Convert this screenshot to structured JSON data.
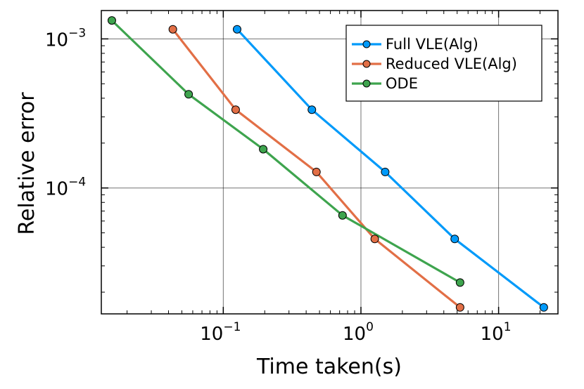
{
  "chart_data": {
    "type": "line",
    "x_scale": "log",
    "y_scale": "log",
    "xlabel": "Time taken(s)",
    "ylabel": "Relative error",
    "xlim": [
      0.013,
      27
    ],
    "ylim": [
      1.43e-05,
      0.00155
    ],
    "grid": true,
    "legend_position": "top-right",
    "x_ticks": [
      {
        "value": 0.1,
        "base": "10",
        "exp": "−1"
      },
      {
        "value": 1,
        "base": "10",
        "exp": "0"
      },
      {
        "value": 10,
        "base": "10",
        "exp": "1"
      }
    ],
    "y_ticks": [
      {
        "value": 0.001,
        "base": "10",
        "exp": "−3"
      },
      {
        "value": 0.0001,
        "base": "10",
        "exp": "−4"
      }
    ],
    "series": [
      {
        "name": "Full VLE(Alg)",
        "color": "#009AFA",
        "x": [
          0.126,
          0.44,
          1.5,
          4.8,
          21.3
        ],
        "y": [
          0.00116,
          0.000335,
          0.000128,
          4.55e-05,
          1.58e-05
        ]
      },
      {
        "name": "Reduced VLE(Alg)",
        "color": "#E26F46",
        "x": [
          0.043,
          0.123,
          0.475,
          1.26,
          5.25
        ],
        "y": [
          0.00116,
          0.000335,
          0.000128,
          4.55e-05,
          1.58e-05
        ]
      },
      {
        "name": "ODE",
        "color": "#3EA44E",
        "x": [
          0.0155,
          0.056,
          0.195,
          0.735,
          5.25
        ],
        "y": [
          0.00133,
          0.000425,
          0.000182,
          6.55e-05,
          2.32e-05
        ]
      }
    ]
  }
}
